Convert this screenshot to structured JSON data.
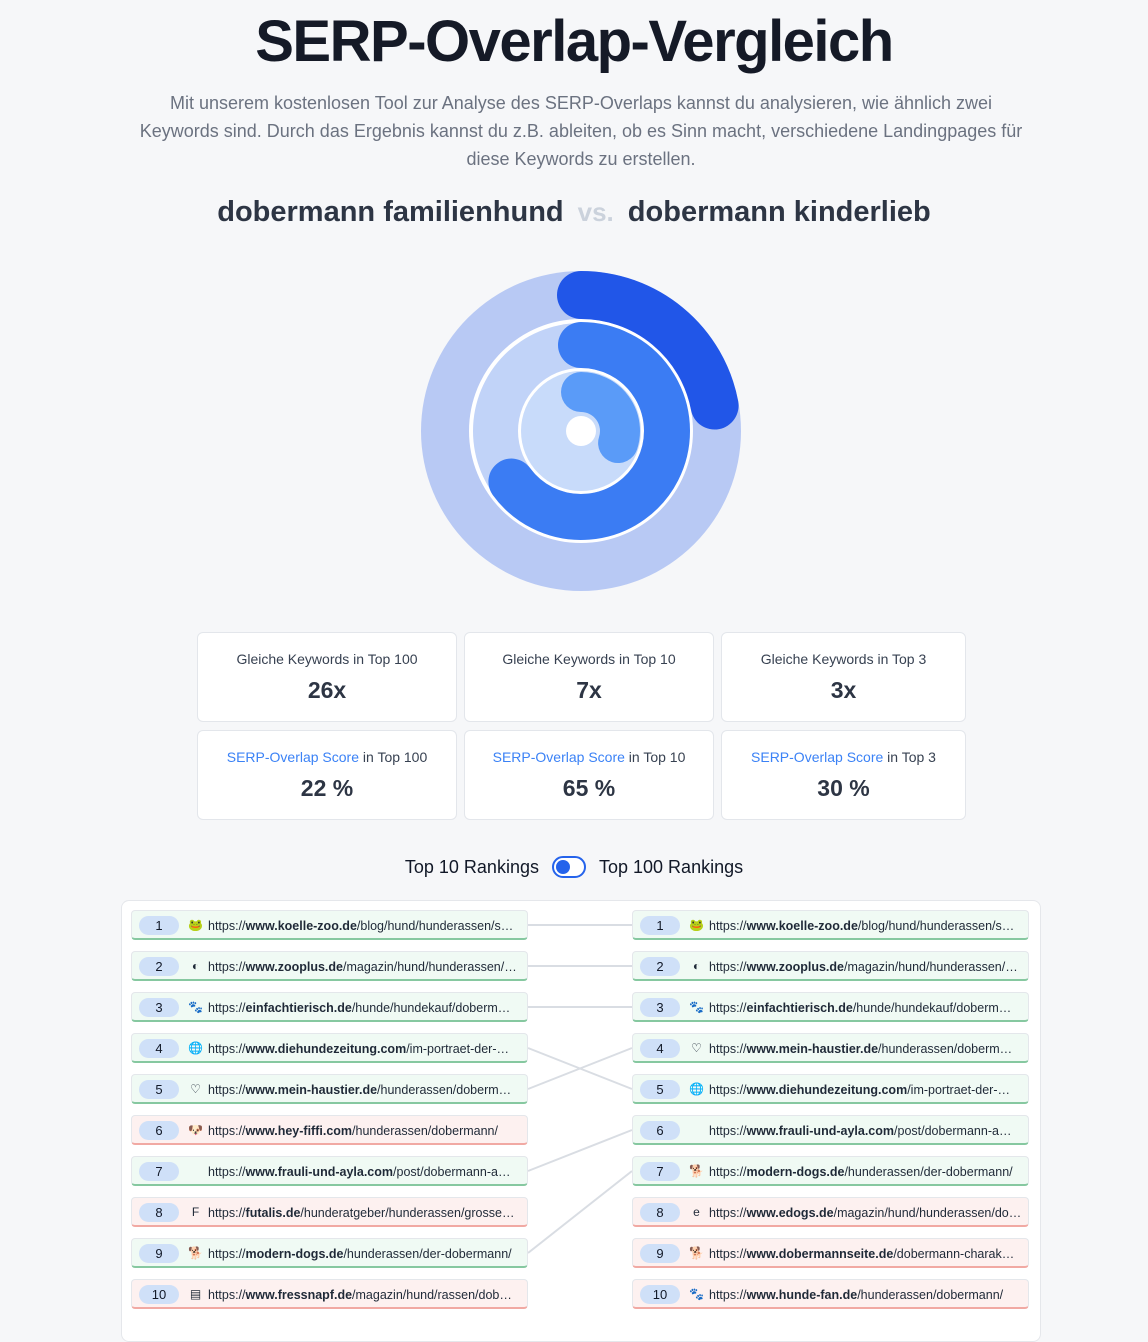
{
  "title": "SERP-Overlap-Vergleich",
  "intro": "Mit unserem kostenlosen Tool zur Analyse des SERP-Overlaps kannst du analysieren, wie ähnlich zwei Keywords sind. Durch das Ergebnis kannst du z.B. ableiten, ob es Sinn macht, verschiedene Landingpages für diese Keywords zu erstellen.",
  "keyword_a": "dobermann familienhund",
  "vs": "vs.",
  "keyword_b": "dobermann kinderlieb",
  "colors": {
    "ring_outer": "#2156e8",
    "ring_middle": "#3b7cf3",
    "ring_inner": "#5a9bf8",
    "track": "#b8c9f4",
    "match": "#f0faf4",
    "miss": "#fdf1f0"
  },
  "chart_data": {
    "type": "radial-bar",
    "rings": [
      {
        "label": "Top 100",
        "value": 22
      },
      {
        "label": "Top 10",
        "value": 65
      },
      {
        "label": "Top 3",
        "value": 30
      }
    ],
    "max": 100
  },
  "stats": {
    "same_top100_label": "Gleiche Keywords in Top 100",
    "same_top100_value": "26x",
    "same_top10_label": "Gleiche Keywords in Top 10",
    "same_top10_value": "7x",
    "same_top3_label": "Gleiche Keywords in Top 3",
    "same_top3_value": "3x",
    "score_link": "SERP-Overlap Score",
    "score_top100_suffix": " in Top 100",
    "score_top100_value": "22 %",
    "score_top10_suffix": " in Top 10",
    "score_top10_value": "65 %",
    "score_top3_suffix": " in Top 3",
    "score_top3_value": "30 %"
  },
  "toggle": {
    "left_label": "Top 10 Rankings",
    "right_label": "Top 100 Rankings"
  },
  "left_rankings": [
    {
      "rank": "1",
      "icon": "frog-icon",
      "glyph": "🐸",
      "prefix": "https://",
      "domain": "www.koelle-zoo.de",
      "path": "/blog/hund/hunderassen/s…",
      "match": true
    },
    {
      "rank": "2",
      "icon": "zooplus-icon",
      "glyph": "◐",
      "prefix": "https://",
      "domain": "www.zooplus.de",
      "path": "/magazin/hund/hunderassen/…",
      "match": true
    },
    {
      "rank": "3",
      "icon": "paw-icon",
      "glyph": "🐾",
      "prefix": "https://",
      "domain": "einfachtierisch.de",
      "path": "/hunde/hundekauf/doberm…",
      "match": true
    },
    {
      "rank": "4",
      "icon": "globe-icon",
      "glyph": "🌐",
      "prefix": "https://",
      "domain": "www.diehundezeitung.com",
      "path": "/im-portraet-der-…",
      "match": true
    },
    {
      "rank": "5",
      "icon": "heart-icon",
      "glyph": "♡",
      "prefix": "https://",
      "domain": "www.mein-haustier.de",
      "path": "/hunderassen/doberm…",
      "match": true
    },
    {
      "rank": "6",
      "icon": "dog-face-icon",
      "glyph": "🐶",
      "prefix": "https://",
      "domain": "www.hey-fiffi.com",
      "path": "/hunderassen/dobermann/",
      "match": false
    },
    {
      "rank": "7",
      "icon": "",
      "glyph": "",
      "prefix": "https://",
      "domain": "www.frauli-und-ayla.com",
      "path": "/post/dobermann-a…",
      "match": true
    },
    {
      "rank": "8",
      "icon": "futalis-icon",
      "glyph": "F",
      "prefix": "https://",
      "domain": "futalis.de",
      "path": "/hunderatgeber/hunderassen/grosse…",
      "match": false
    },
    {
      "rank": "9",
      "icon": "dog-icon",
      "glyph": "🐕",
      "prefix": "https://",
      "domain": "modern-dogs.de",
      "path": "/hunderassen/der-dobermann/",
      "match": true
    },
    {
      "rank": "10",
      "icon": "fressnapf-icon",
      "glyph": "▤",
      "prefix": "https://",
      "domain": "www.fressnapf.de",
      "path": "/magazin/hund/rassen/dob…",
      "match": false
    }
  ],
  "right_rankings": [
    {
      "rank": "1",
      "icon": "frog-icon",
      "glyph": "🐸",
      "prefix": "https://",
      "domain": "www.koelle-zoo.de",
      "path": "/blog/hund/hunderassen/s…",
      "match": true
    },
    {
      "rank": "2",
      "icon": "zooplus-icon",
      "glyph": "◐",
      "prefix": "https://",
      "domain": "www.zooplus.de",
      "path": "/magazin/hund/hunderassen/…",
      "match": true
    },
    {
      "rank": "3",
      "icon": "paw-icon",
      "glyph": "🐾",
      "prefix": "https://",
      "domain": "einfachtierisch.de",
      "path": "/hunde/hundekauf/doberm…",
      "match": true
    },
    {
      "rank": "4",
      "icon": "heart-icon",
      "glyph": "♡",
      "prefix": "https://",
      "domain": "www.mein-haustier.de",
      "path": "/hunderassen/doberm…",
      "match": true
    },
    {
      "rank": "5",
      "icon": "globe-icon",
      "glyph": "🌐",
      "prefix": "https://",
      "domain": "www.diehundezeitung.com",
      "path": "/im-portraet-der-…",
      "match": true
    },
    {
      "rank": "6",
      "icon": "",
      "glyph": "",
      "prefix": "https://",
      "domain": "www.frauli-und-ayla.com",
      "path": "/post/dobermann-a…",
      "match": true
    },
    {
      "rank": "7",
      "icon": "dog-icon",
      "glyph": "🐕",
      "prefix": "https://",
      "domain": "modern-dogs.de",
      "path": "/hunderassen/der-dobermann/",
      "match": true
    },
    {
      "rank": "8",
      "icon": "edogs-icon",
      "glyph": "e",
      "prefix": "https://",
      "domain": "www.edogs.de",
      "path": "/magazin/hund/hunderassen/dober…",
      "match": false
    },
    {
      "rank": "9",
      "icon": "dobermann-icon",
      "glyph": "🐕",
      "prefix": "https://",
      "domain": "www.dobermannseite.de",
      "path": "/dobermann-charak…",
      "match": false
    },
    {
      "rank": "10",
      "icon": "hunde-fan-icon",
      "glyph": "🐾",
      "prefix": "https://",
      "domain": "www.hunde-fan.de",
      "path": "/hunderassen/dobermann/",
      "match": false
    }
  ],
  "links": [
    [
      1,
      1
    ],
    [
      2,
      2
    ],
    [
      3,
      3
    ],
    [
      4,
      5
    ],
    [
      5,
      4
    ],
    [
      7,
      6
    ],
    [
      9,
      7
    ]
  ]
}
